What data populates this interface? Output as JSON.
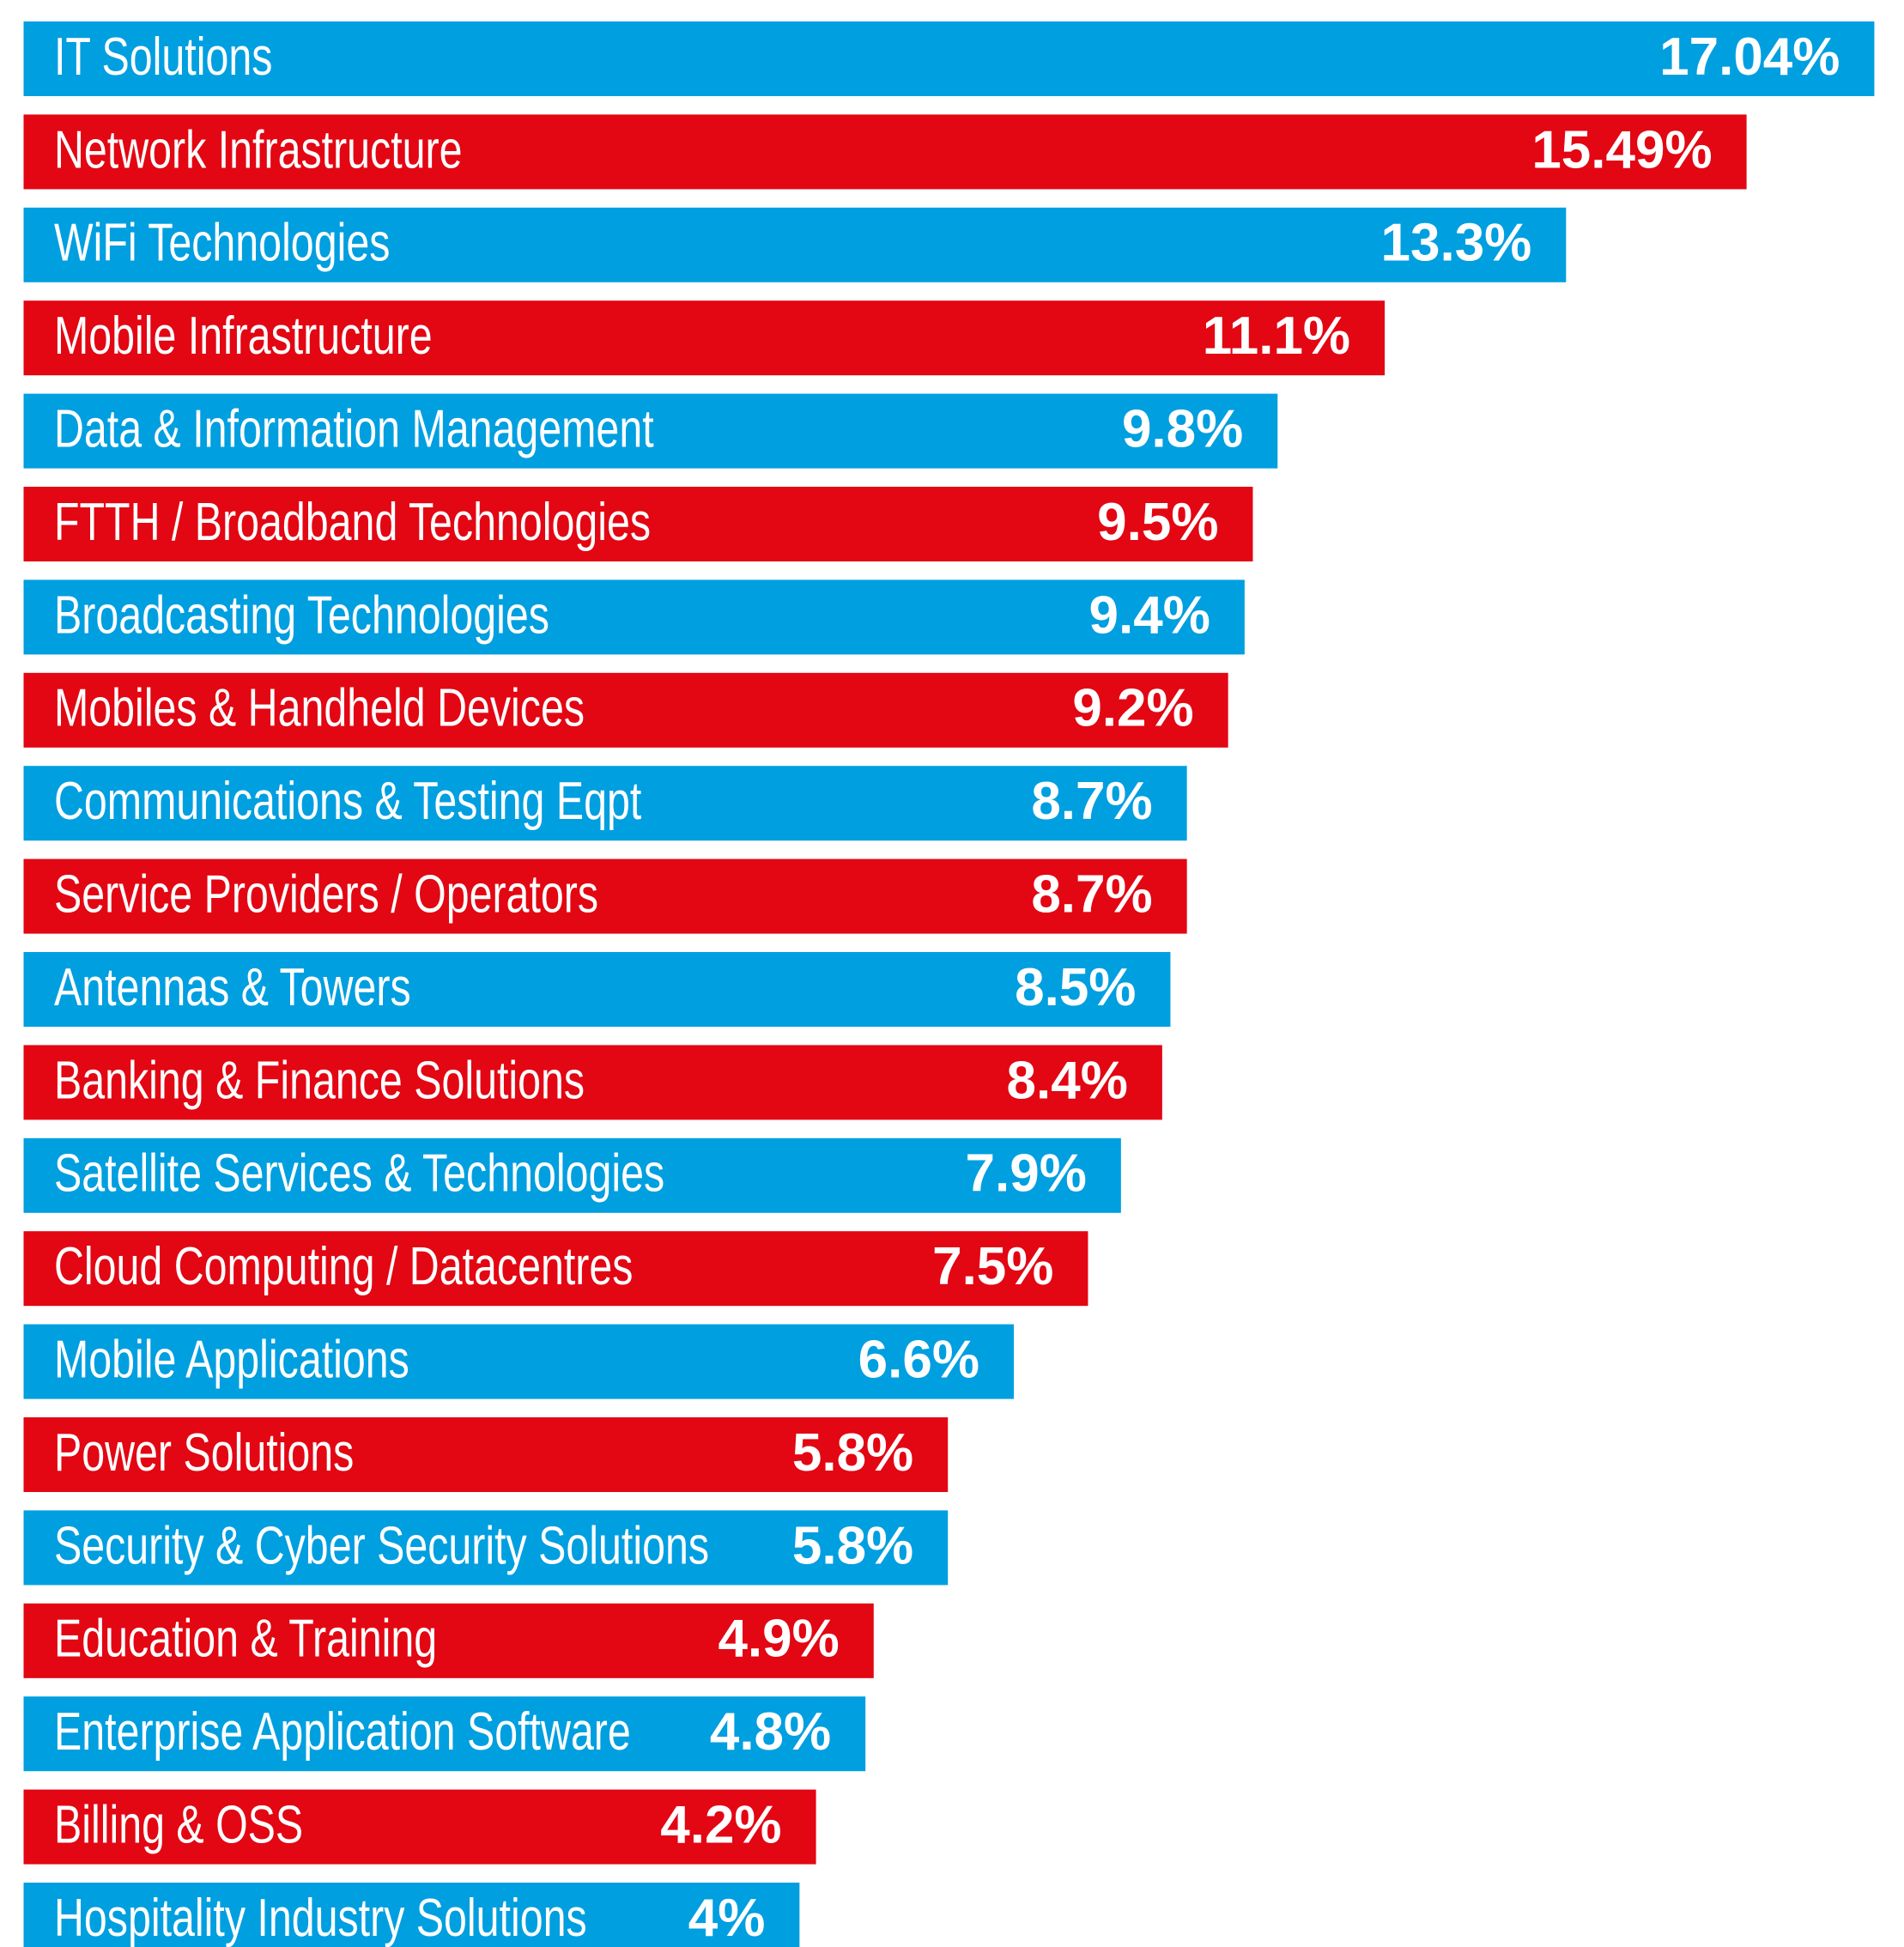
{
  "chart_data": {
    "type": "bar",
    "orientation": "horizontal",
    "categories": [
      "IT Solutions",
      "Network Infrastructure",
      "WiFi Technologies",
      "Mobile Infrastructure",
      "Data & Information Management",
      "FTTH / Broadband Technologies",
      "Broadcasting Technologies",
      "Mobiles & Handheld Devices",
      "Communications & Testing Eqpt",
      "Service Providers / Operators",
      "Antennas & Towers",
      "Banking & Finance Solutions",
      "Satellite Services & Technologies",
      "Cloud Computing / Datacentres",
      "Mobile Applications",
      "Power Solutions",
      "Security & Cyber Security Solutions",
      "Education & Training",
      "Enterprise Application Software",
      "Billing & OSS",
      "Hospitality Industry Solutions"
    ],
    "values": [
      17.04,
      15.49,
      13.3,
      11.1,
      9.8,
      9.5,
      9.4,
      9.2,
      8.7,
      8.7,
      8.5,
      8.4,
      7.9,
      7.5,
      6.6,
      5.8,
      5.8,
      4.9,
      4.8,
      4.2,
      4
    ],
    "value_labels": [
      "17.04%",
      "15.49%",
      "13.3%",
      "11.1%",
      "9.8%",
      "9.5%",
      "9.4%",
      "9.2%",
      "8.7%",
      "8.7%",
      "8.5%",
      "8.4%",
      "7.9%",
      "7.5%",
      "6.6%",
      "5.8%",
      "5.8%",
      "4.9%",
      "4.8%",
      "4.2%",
      "4%"
    ],
    "colors": [
      "#009fe0",
      "#e30613"
    ],
    "xlim": [
      -5.7,
      17.4
    ]
  }
}
